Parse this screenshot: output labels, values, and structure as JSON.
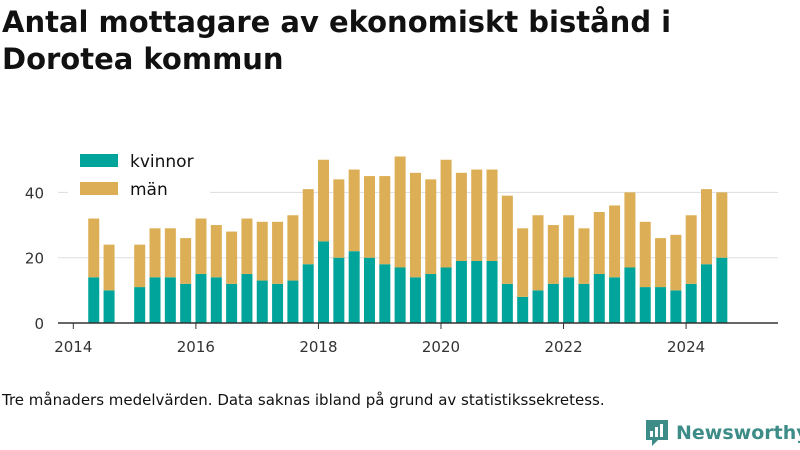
{
  "title": "Antal mottagare av ekonomiskt bistånd i Dorotea kommun",
  "caption": "Tre månaders medelvärden. Data saknas ibland på grund av statistikssekretess.",
  "brand": {
    "name": "Newsworthy",
    "color": "#3d8c87"
  },
  "colors": {
    "kvinnor": "#00a49a",
    "man": "#dcae55",
    "grid": "#dddddd",
    "axis": "#333333",
    "text": "#333333"
  },
  "chart_data": {
    "type": "bar",
    "stacked": true,
    "title": "Antal mottagare av ekonomiskt bistånd i Dorotea kommun",
    "legend_position": "top-left",
    "grid": true,
    "ylim": [
      0,
      52
    ],
    "yticks": [
      0,
      20,
      40
    ],
    "xticks": [
      "2014",
      "2016",
      "2018",
      "2020",
      "2022",
      "2024"
    ],
    "xlim": [
      "2013-10",
      "2025-07"
    ],
    "x": [
      "2014-05",
      "2014-08",
      "2014-11",
      "2015-02",
      "2015-05",
      "2015-08",
      "2015-11",
      "2016-02",
      "2016-05",
      "2016-08",
      "2016-11",
      "2017-02",
      "2017-05",
      "2017-08",
      "2017-11",
      "2018-02",
      "2018-05",
      "2018-08",
      "2018-11",
      "2019-02",
      "2019-05",
      "2019-08",
      "2019-11",
      "2020-02",
      "2020-05",
      "2020-08",
      "2020-11",
      "2021-02",
      "2021-05",
      "2021-08",
      "2021-11",
      "2022-02",
      "2022-05",
      "2022-08",
      "2022-11",
      "2023-02",
      "2023-05",
      "2023-08",
      "2023-11",
      "2024-02",
      "2024-05",
      "2024-08"
    ],
    "series": [
      {
        "name": "kvinnor",
        "values": [
          14,
          10,
          null,
          11,
          14,
          14,
          12,
          15,
          14,
          12,
          15,
          13,
          12,
          13,
          18,
          25,
          20,
          22,
          20,
          18,
          17,
          14,
          15,
          17,
          19,
          19,
          19,
          12,
          8,
          10,
          12,
          14,
          12,
          15,
          14,
          17,
          11,
          11,
          10,
          12,
          18,
          20
        ]
      },
      {
        "name": "män",
        "values": [
          18,
          14,
          null,
          13,
          15,
          15,
          14,
          17,
          16,
          16,
          17,
          18,
          19,
          20,
          23,
          25,
          24,
          25,
          25,
          27,
          34,
          32,
          29,
          33,
          27,
          28,
          28,
          27,
          21,
          23,
          18,
          19,
          17,
          19,
          22,
          23,
          20,
          15,
          17,
          21,
          23,
          20
        ]
      }
    ]
  }
}
